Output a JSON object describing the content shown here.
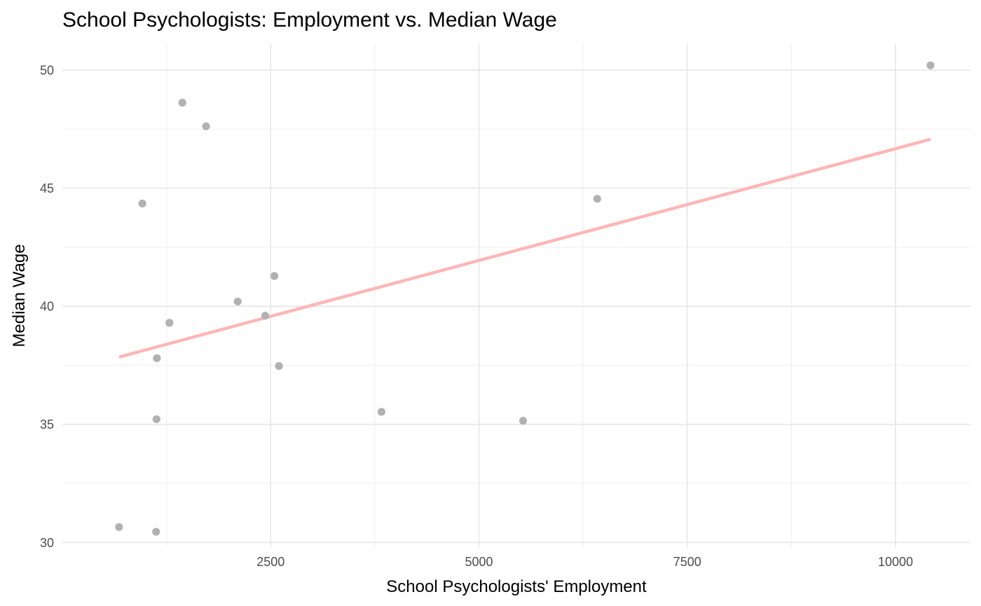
{
  "chart_data": {
    "type": "scatter",
    "title": "School Psychologists: Employment vs. Median Wage",
    "xlabel": "School Psychologists' Employment",
    "ylabel": "Median Wage",
    "xlim": [
      0,
      10900
    ],
    "ylim": [
      29.8,
      51.1
    ],
    "x_ticks": [
      2500,
      5000,
      7500,
      10000
    ],
    "x_tick_labels": [
      "2500",
      "5000",
      "7500",
      "10000"
    ],
    "x_minor_ticks": [
      1250,
      3750,
      6250,
      8750
    ],
    "y_ticks": [
      30,
      35,
      40,
      45,
      50
    ],
    "y_tick_labels": [
      "30",
      "35",
      "40",
      "45",
      "50"
    ],
    "y_minor_ticks": [
      32.5,
      37.5,
      42.5,
      47.5
    ],
    "grid": true,
    "legend": "none",
    "point_color": "#b1b1b1",
    "trend_color": "#ffb6b6",
    "points": [
      {
        "x": 680,
        "y": 30.65
      },
      {
        "x": 1125,
        "y": 30.45
      },
      {
        "x": 960,
        "y": 44.35
      },
      {
        "x": 1440,
        "y": 48.62
      },
      {
        "x": 1725,
        "y": 47.62
      },
      {
        "x": 1285,
        "y": 39.3
      },
      {
        "x": 1135,
        "y": 37.8
      },
      {
        "x": 1130,
        "y": 35.22
      },
      {
        "x": 2105,
        "y": 40.2
      },
      {
        "x": 2435,
        "y": 39.6
      },
      {
        "x": 2545,
        "y": 41.28
      },
      {
        "x": 2600,
        "y": 37.47
      },
      {
        "x": 3830,
        "y": 35.53
      },
      {
        "x": 5530,
        "y": 35.15
      },
      {
        "x": 6420,
        "y": 44.55
      },
      {
        "x": 10420,
        "y": 50.2
      }
    ],
    "trend": {
      "x": [
        680,
        10420
      ],
      "y": [
        37.85,
        47.07
      ]
    }
  }
}
